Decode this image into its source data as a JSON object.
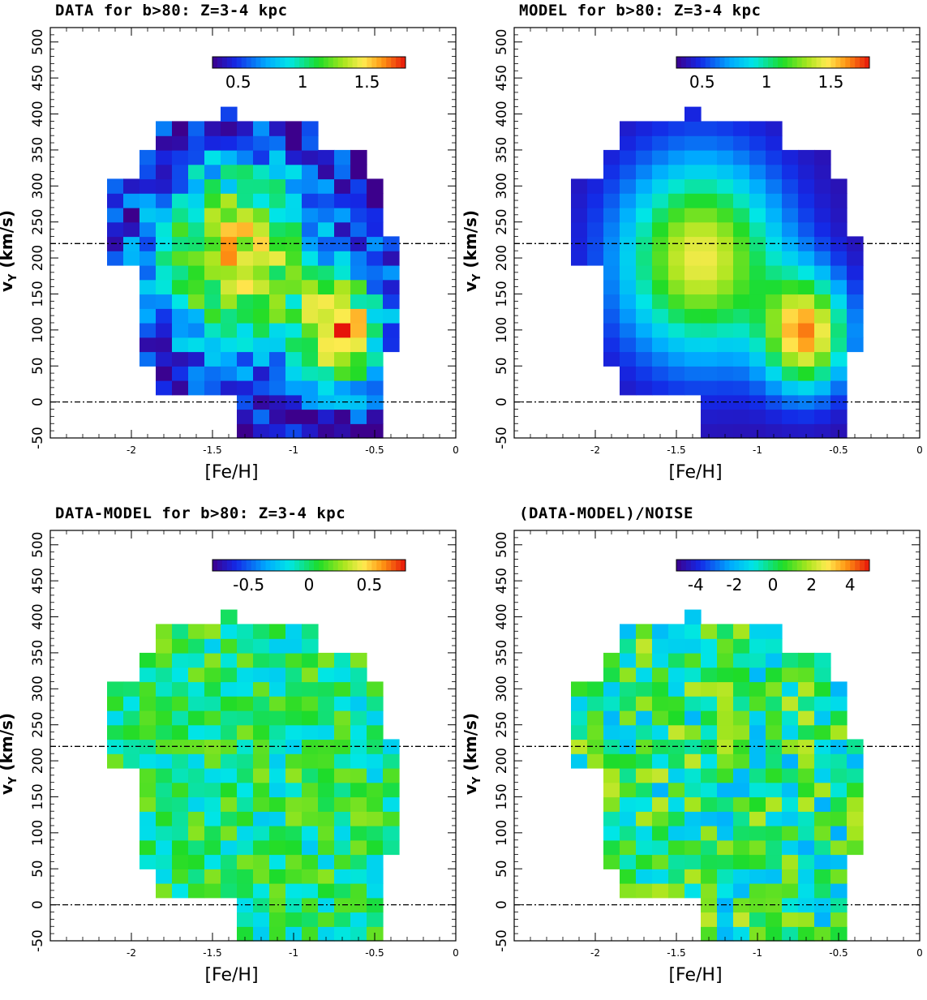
{
  "chart_data": [
    {
      "type": "heatmap",
      "title": "DATA for b>80: Z=3-4 kpc",
      "xlabel": "[Fe/H]",
      "ylabel": "v_Y (km/s)",
      "xlim": [
        -2.5,
        0
      ],
      "ylim": [
        -50,
        520
      ],
      "xticks": [
        "-2",
        "-1.5",
        "-1",
        "-0.5",
        "0"
      ],
      "xtick_values": [
        -2,
        -1.5,
        -1,
        -0.5,
        0
      ],
      "yticks": [
        "-50",
        "0",
        "50",
        "100",
        "150",
        "200",
        "250",
        "300",
        "350",
        "400",
        "450",
        "500"
      ],
      "ytick_values": [
        -50,
        0,
        50,
        100,
        150,
        200,
        250,
        300,
        350,
        400,
        450,
        500
      ],
      "reference_lines": [
        0,
        220
      ],
      "colorbar": {
        "min": 0.3,
        "max": 1.8,
        "ticks": [
          "0.5",
          "1",
          "1.5"
        ],
        "tick_values": [
          0.5,
          1.0,
          1.5
        ],
        "position": "top-right"
      },
      "bin_x_start": -2.1,
      "bin_x_width": 0.1,
      "bin_y_start": -30,
      "bin_y_width": 20,
      "grid": [
        [
          null,
          null,
          null,
          null,
          null,
          null,
          null,
          null,
          null,
          null,
          null,
          null,
          null,
          null,
          null,
          null,
          null,
          null
        ],
        [
          null,
          null,
          null,
          null,
          null,
          null,
          null,
          null,
          null,
          null,
          null,
          null,
          null,
          null,
          null,
          null,
          null,
          null
        ],
        [
          null,
          null,
          null,
          null,
          null,
          null,
          null,
          null,
          null,
          null,
          null,
          null,
          null,
          null,
          null,
          null,
          null,
          null
        ],
        [
          null,
          null,
          null,
          null,
          null,
          null,
          null,
          null,
          null,
          null,
          null,
          null,
          null,
          null,
          null,
          null,
          null,
          null
        ],
        [
          null,
          null,
          null,
          null,
          null,
          null,
          null,
          null,
          null,
          null,
          null,
          null,
          null,
          null,
          null,
          null,
          null,
          null
        ],
        [
          null,
          null,
          null,
          null,
          null,
          null,
          null,
          null,
          null,
          null,
          null,
          null,
          null,
          null,
          null,
          null,
          null,
          null
        ],
        [
          null,
          null,
          null,
          null,
          null,
          null,
          null,
          null,
          null,
          null,
          null,
          null,
          null,
          null,
          null,
          null,
          null,
          null
        ],
        [
          null,
          null,
          null,
          null,
          null,
          null,
          null,
          null,
          null,
          null,
          null,
          null,
          null,
          null,
          null,
          null,
          null,
          null
        ],
        [
          null,
          null,
          null,
          null,
          null,
          null,
          null,
          null,
          null,
          null,
          null,
          null,
          null,
          null,
          null,
          null,
          null,
          null
        ],
        [
          null,
          null,
          null,
          null,
          null,
          null,
          null,
          null,
          null,
          null,
          null,
          null,
          null,
          null,
          null,
          null,
          null,
          null
        ],
        [
          null,
          null,
          null,
          null,
          null,
          null,
          null,
          null,
          null,
          null,
          null,
          null,
          null,
          null,
          null,
          null,
          null,
          null
        ],
        [
          null,
          null,
          null,
          null,
          null,
          null,
          null,
          null,
          null,
          null,
          null,
          null,
          null,
          null,
          null,
          null,
          null,
          null
        ],
        [
          null,
          null,
          null,
          null,
          null,
          null,
          null,
          null,
          null,
          null,
          null,
          null,
          null,
          null,
          null,
          null,
          null,
          null
        ],
        [
          null,
          null,
          null,
          null,
          null,
          null,
          null,
          null,
          null,
          null,
          null,
          null,
          null,
          null,
          null,
          null,
          null,
          null
        ],
        [
          null,
          null,
          null,
          null,
          null,
          null,
          null,
          null,
          null,
          null,
          null,
          null,
          null,
          null,
          null,
          null,
          null,
          null
        ],
        [
          null,
          null,
          null,
          null,
          null,
          null,
          null,
          null,
          null,
          null,
          null,
          null,
          null,
          null,
          null,
          null,
          null,
          null
        ],
        [
          null,
          null,
          null,
          null,
          null,
          null,
          null,
          null,
          null,
          null,
          null,
          null,
          null,
          null,
          null,
          null,
          null,
          null
        ],
        [
          null,
          null,
          null,
          null,
          null,
          null,
          null,
          null,
          null,
          null,
          null,
          null,
          null,
          null,
          null,
          null,
          null,
          null
        ],
        [
          null,
          null,
          null,
          null,
          null,
          null,
          null,
          null,
          null,
          null,
          null,
          null,
          null,
          null,
          null,
          null,
          null,
          null
        ],
        [
          null,
          null,
          null,
          null,
          null,
          null,
          null,
          null,
          null,
          null,
          null,
          null,
          null,
          null,
          null,
          null,
          null,
          null
        ],
        [
          null,
          null,
          null,
          null,
          null,
          null,
          null,
          null,
          null,
          null,
          null,
          null,
          null,
          null,
          null,
          null,
          null,
          null
        ],
        [
          null,
          null,
          null,
          null,
          null,
          null,
          null,
          null,
          null,
          null,
          null,
          null,
          null,
          null,
          null,
          null,
          null,
          null
        ],
        [
          null,
          null,
          null,
          null,
          null,
          null,
          null,
          null,
          null,
          null,
          null,
          null,
          null,
          null,
          null,
          null,
          null,
          null
        ]
      ]
    },
    {
      "type": "heatmap",
      "title": "MODEL for b>80: Z=3-4 kpc",
      "xlabel": "[Fe/H]",
      "ylabel": "v_Y (km/s)",
      "xlim": [
        -2.5,
        0
      ],
      "ylim": [
        -50,
        520
      ],
      "xticks": [
        "-2",
        "-1.5",
        "-1",
        "-0.5",
        "0"
      ],
      "xtick_values": [
        -2,
        -1.5,
        -1,
        -0.5,
        0
      ],
      "yticks": [
        "-50",
        "0",
        "50",
        "100",
        "150",
        "200",
        "250",
        "300",
        "350",
        "400",
        "450",
        "500"
      ],
      "ytick_values": [
        -50,
        0,
        50,
        100,
        150,
        200,
        250,
        300,
        350,
        400,
        450,
        500
      ],
      "reference_lines": [
        0,
        220
      ],
      "colorbar": {
        "min": 0.3,
        "max": 1.8,
        "ticks": [
          "0.5",
          "1",
          "1.5"
        ],
        "tick_values": [
          0.5,
          1.0,
          1.5
        ],
        "position": "top-right"
      }
    },
    {
      "type": "heatmap",
      "title": "DATA-MODEL for b>80: Z=3-4 kpc",
      "xlabel": "[Fe/H]",
      "ylabel": "v_Y (km/s)",
      "xlim": [
        -2.5,
        0
      ],
      "ylim": [
        -50,
        520
      ],
      "xticks": [
        "-2",
        "-1.5",
        "-1",
        "-0.5",
        "0"
      ],
      "xtick_values": [
        -2,
        -1.5,
        -1,
        -0.5,
        0
      ],
      "yticks": [
        "-50",
        "0",
        "50",
        "100",
        "150",
        "200",
        "250",
        "300",
        "350",
        "400",
        "450",
        "500"
      ],
      "ytick_values": [
        -50,
        0,
        50,
        100,
        150,
        200,
        250,
        300,
        350,
        400,
        450,
        500
      ],
      "reference_lines": [
        0,
        220
      ],
      "colorbar": {
        "min": -0.8,
        "max": 0.8,
        "ticks": [
          "-0.5",
          "0",
          "0.5"
        ],
        "tick_values": [
          -0.5,
          0,
          0.5
        ],
        "position": "top-right"
      }
    },
    {
      "type": "heatmap",
      "title": "(DATA-MODEL)/NOISE",
      "xlabel": "[Fe/H]",
      "ylabel": "v_Y (km/s)",
      "xlim": [
        -2.5,
        0
      ],
      "ylim": [
        -50,
        520
      ],
      "xticks": [
        "-2",
        "-1.5",
        "-1",
        "-0.5",
        "0"
      ],
      "xtick_values": [
        -2,
        -1.5,
        -1,
        -0.5,
        0
      ],
      "yticks": [
        "-50",
        "0",
        "50",
        "100",
        "150",
        "200",
        "250",
        "300",
        "350",
        "400",
        "450",
        "500"
      ],
      "ytick_values": [
        -50,
        0,
        50,
        100,
        150,
        200,
        250,
        300,
        350,
        400,
        450,
        500
      ],
      "reference_lines": [
        0,
        220
      ],
      "colorbar": {
        "min": -5,
        "max": 5,
        "ticks": [
          "-4",
          "-2",
          "0",
          "2",
          "4"
        ],
        "tick_values": [
          -4,
          -2,
          0,
          2,
          4
        ],
        "position": "top-right"
      }
    }
  ]
}
